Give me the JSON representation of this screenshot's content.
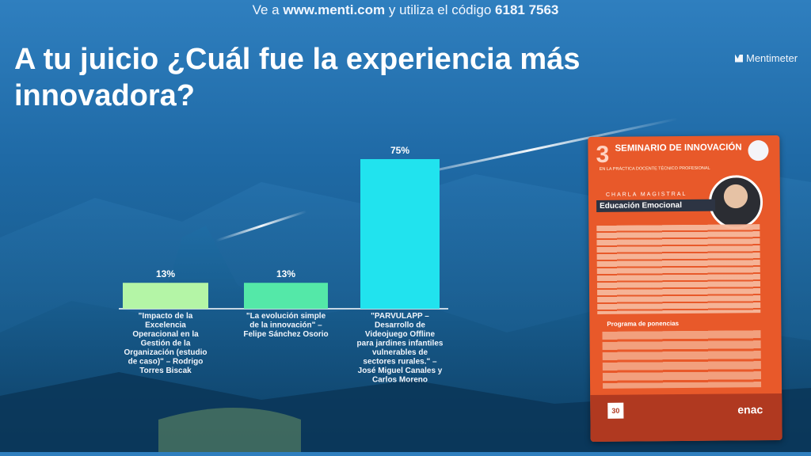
{
  "header": {
    "instruction_prefix": "Ve a ",
    "url": "www.menti.com",
    "instruction_middle": " y utiliza el código ",
    "code": "6181 7563"
  },
  "title": "A tu juicio ¿Cuál fue la experiencia más innovadora?",
  "brand": "Mentimeter",
  "chart_data": {
    "type": "bar",
    "title": "A tu juicio ¿Cuál fue la experiencia más innovadora?",
    "xlabel": "",
    "ylabel": "",
    "ylim": [
      0,
      75
    ],
    "categories": [
      "\"Impacto de la Excelencia Operacional en la Gestión de la Organización (estudio de caso)\" – Rodrigo Torres Biscak",
      "\"La evolución simple de la innovación\" – Felipe Sánchez Osorio",
      "\"PARVULAPP – Desarrollo de Videojuego Offline para jardines infantiles vulnerables de sectores rurales.\" – José Miguel Canales y Carlos Moreno"
    ],
    "values": [
      13,
      13,
      75
    ],
    "value_labels": [
      "13%",
      "13%",
      "75%"
    ],
    "category_lines": [
      [
        "\"Impacto de la",
        "Excelencia",
        "Operacional en la",
        "Gestión de la",
        "Organización (estudio",
        "de caso)\" – Rodrigo",
        "Torres Biscak"
      ],
      [
        "\"La evolución simple",
        "de la innovación\" –",
        "Felipe Sánchez Osorio"
      ],
      [
        "\"PARVULAPP –",
        "Desarrollo de",
        "Videojuego Offline",
        "para jardines infantiles",
        "vulnerables de",
        "sectores rurales.\" –",
        "José Miguel Canales y",
        "Carlos Moreno"
      ]
    ],
    "colors": [
      "#b4f5a6",
      "#54e8a8",
      "#21e3ee"
    ],
    "grid": false,
    "legend": "none"
  },
  "poster": {
    "number": "3",
    "title": "SEMINARIO DE INNOVACIÓN",
    "subtitle": "EN LA PRÁCTICA DOCENTE TÉCNICO PROFESIONAL",
    "talk_kicker": "CHARLA MAGISTRAL",
    "talk_title": "Educación Emocional",
    "program_label": "Programa de ponencias",
    "date": "30",
    "brand": "enac"
  }
}
